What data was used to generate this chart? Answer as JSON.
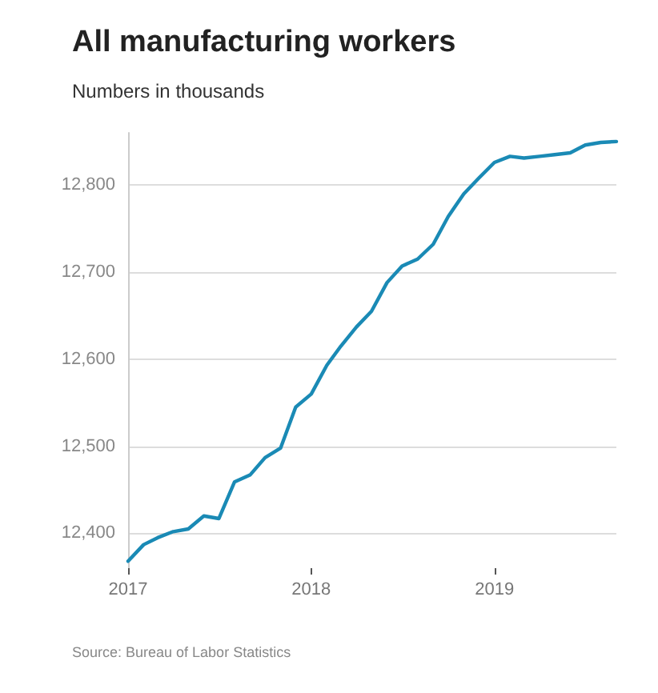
{
  "chart_data": {
    "type": "line",
    "title": "All manufacturing workers",
    "subtitle": "Numbers in thousands",
    "x": [
      "2017-01",
      "2017-02",
      "2017-03",
      "2017-04",
      "2017-05",
      "2017-06",
      "2017-07",
      "2017-08",
      "2017-09",
      "2017-10",
      "2017-11",
      "2017-12",
      "2018-01",
      "2018-02",
      "2018-03",
      "2018-04",
      "2018-05",
      "2018-06",
      "2018-07",
      "2018-08",
      "2018-09",
      "2018-10",
      "2018-11",
      "2018-12",
      "2019-01",
      "2019-02",
      "2019-03",
      "2019-04",
      "2019-05",
      "2019-06",
      "2019-07",
      "2019-08",
      "2019-09"
    ],
    "series": [
      {
        "color": "#1a8ab5",
        "values": [
          12368,
          12387,
          12395,
          12402,
          12405,
          12420,
          12417,
          12459,
          12467,
          12487,
          12498,
          12545,
          12560,
          12593,
          12615,
          12637,
          12655,
          12688,
          12707,
          12715,
          12732,
          12764,
          12790,
          12808,
          12826,
          12833,
          12831,
          12833,
          12835,
          12837,
          12846,
          12849,
          12850
        ]
      }
    ],
    "ylim": [
      12360,
      12860
    ],
    "yticks": [
      {
        "value": 12400,
        "label": "12,400"
      },
      {
        "value": 12500,
        "label": "12,500"
      },
      {
        "value": 12600,
        "label": "12,600"
      },
      {
        "value": 12700,
        "label": "12,700"
      },
      {
        "value": 12800,
        "label": "12,800"
      }
    ],
    "xlim": [
      "2017-01",
      "2019-09"
    ],
    "xticks": [
      "2017",
      "2018",
      "2019"
    ],
    "grid": "y",
    "marker": "none",
    "line_style": "solid",
    "annotations": [
      "Source: Bureau of Labor Statistics"
    ]
  }
}
